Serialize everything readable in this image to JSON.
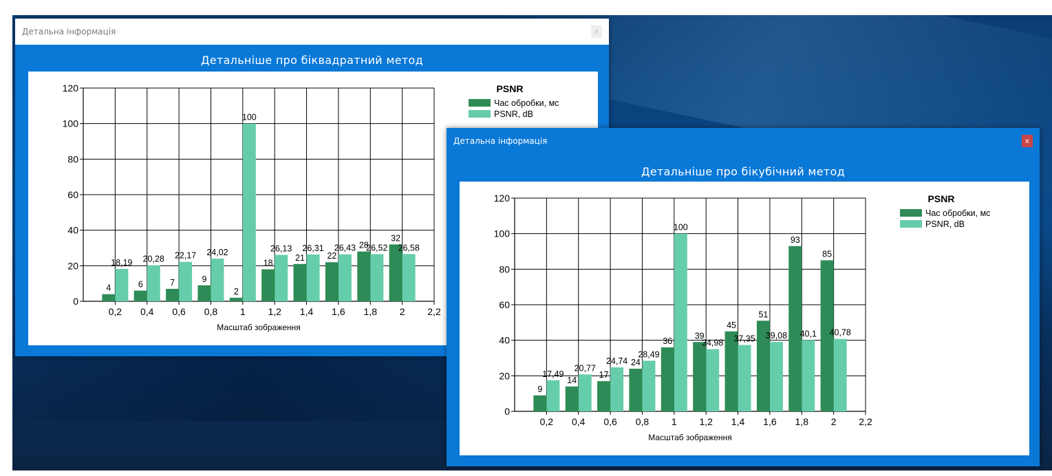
{
  "windows": [
    {
      "title": "Детальна інформація",
      "close_label": "x",
      "subtitle": "Детальніше про біквадратний метод",
      "chart_data": {
        "type": "bar",
        "title": "PSNR",
        "xlabel": "Масштаб зображення",
        "ylabel": "",
        "xlim": [
          0,
          2.2
        ],
        "ylim": [
          0,
          120
        ],
        "x_ticks": [
          "0,2",
          "0,4",
          "0,6",
          "0,8",
          "1",
          "1,2",
          "1,4",
          "1,6",
          "1,8",
          "2",
          "2,2"
        ],
        "y_ticks": [
          "0",
          "20",
          "40",
          "60",
          "80",
          "100",
          "120"
        ],
        "categories": [
          0.2,
          0.4,
          0.6,
          0.8,
          1.0,
          1.2,
          1.4,
          1.6,
          1.8,
          2.0
        ],
        "grid": true,
        "legend_position": "top-right",
        "series": [
          {
            "name": "Час обробки, мс",
            "color": "#2e8b57",
            "values": [
              4,
              6,
              7,
              9,
              2,
              18,
              21,
              22,
              28,
              32
            ],
            "labels": [
              "4",
              "6",
              "7",
              "9",
              "2",
              "18",
              "21",
              "22",
              "28",
              "32"
            ]
          },
          {
            "name": "PSNR, dB",
            "color": "#66cdaa",
            "values": [
              18.19,
              20.28,
              22.17,
              24.02,
              100,
              26.13,
              26.31,
              26.43,
              26.52,
              26.58
            ],
            "labels": [
              "18,19",
              "20,28",
              "22,17",
              "24,02",
              "100",
              "26,13",
              "26,31",
              "26,43",
              "26,52",
              "26,58"
            ]
          }
        ]
      }
    },
    {
      "title": "Детальна інформація",
      "close_label": "x",
      "subtitle": "Детальніше про бікубічний метод",
      "chart_data": {
        "type": "bar",
        "title": "PSNR",
        "xlabel": "Масштаб зображення",
        "ylabel": "",
        "xlim": [
          0,
          2.2
        ],
        "ylim": [
          0,
          120
        ],
        "x_ticks": [
          "0,2",
          "0,4",
          "0,6",
          "0,8",
          "1",
          "1,2",
          "1,4",
          "1,6",
          "1,8",
          "2",
          "2,2"
        ],
        "y_ticks": [
          "0",
          "20",
          "40",
          "60",
          "80",
          "100",
          "120"
        ],
        "categories": [
          0.2,
          0.4,
          0.6,
          0.8,
          1.0,
          1.2,
          1.4,
          1.6,
          1.8,
          2.0
        ],
        "grid": true,
        "legend_position": "top-right",
        "series": [
          {
            "name": "Час обробки, мс",
            "color": "#2e8b57",
            "values": [
              9,
              14,
              17,
              24,
              36,
              39,
              45,
              51,
              93,
              85
            ],
            "labels": [
              "9",
              "14",
              "17",
              "24",
              "36",
              "39",
              "45",
              "51",
              "93",
              "85"
            ]
          },
          {
            "name": "PSNR, dB",
            "color": "#66cdaa",
            "values": [
              17.49,
              20.77,
              24.74,
              28.49,
              100,
              34.98,
              37.35,
              39.08,
              40.1,
              40.78
            ],
            "labels": [
              "17,49",
              "20,77",
              "24,74",
              "28,49",
              "100",
              "34,98",
              "37,35",
              "39,08",
              "40,1",
              "40,78"
            ]
          }
        ]
      }
    }
  ]
}
